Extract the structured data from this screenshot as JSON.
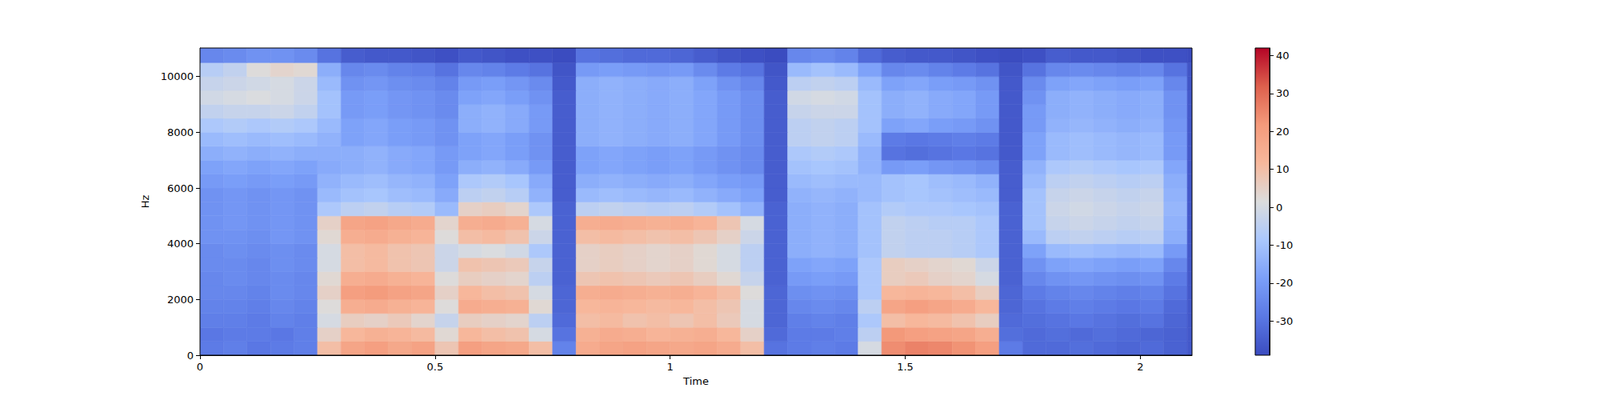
{
  "chart_data": {
    "type": "heatmap",
    "x_label": "Time",
    "y_label": "Hz",
    "xlim": [
      0,
      2.11
    ],
    "xticks": [
      0,
      0.5,
      1,
      1.5,
      2
    ],
    "ylim": [
      0,
      11025
    ],
    "yticks": [
      0,
      2000,
      4000,
      6000,
      8000,
      10000
    ],
    "x_edges": [
      0,
      0.05,
      0.1,
      0.15,
      0.2,
      0.25,
      0.3,
      0.35,
      0.4,
      0.45,
      0.5,
      0.55,
      0.6,
      0.65,
      0.7,
      0.75,
      0.8,
      0.85,
      0.9,
      0.95,
      1,
      1.05,
      1.1,
      1.15,
      1.2,
      1.25,
      1.3,
      1.35,
      1.4,
      1.45,
      1.5,
      1.55,
      1.6,
      1.65,
      1.7,
      1.75,
      1.8,
      1.85,
      1.9,
      1.95,
      2,
      2.05,
      2.1,
      2.11
    ],
    "y_edges": [
      0,
      500,
      1000,
      1500,
      2000,
      2500,
      3000,
      3500,
      4000,
      4500,
      5000,
      5500,
      6000,
      6500,
      7000,
      7500,
      8000,
      8500,
      9000,
      9500,
      10000,
      10500,
      11025
    ],
    "cells": [
      [
        -28,
        -27,
        -29,
        -28,
        -27,
        10,
        18,
        20,
        17,
        19,
        8,
        20,
        18,
        17,
        10,
        -26,
        16,
        18,
        19,
        18,
        17,
        18,
        16,
        10,
        -30,
        -28,
        -27,
        -28,
        0,
        24,
        26,
        25,
        23,
        20,
        -28,
        -32,
        -32,
        -31,
        -32,
        -33,
        -32,
        -34,
        -36
      ],
      [
        -29,
        -28,
        -28,
        -29,
        -27,
        5,
        12,
        14,
        13,
        11,
        3,
        12,
        10,
        9,
        0,
        -30,
        14,
        16,
        15,
        13,
        14,
        15,
        12,
        5,
        -32,
        -28,
        -28,
        -27,
        -5,
        22,
        20,
        19,
        18,
        15,
        -31,
        -32,
        -31,
        -32,
        -31,
        -32,
        -33,
        -34,
        -36
      ],
      [
        -27,
        -27,
        -28,
        -26,
        -27,
        0,
        6,
        5,
        7,
        4,
        -3,
        6,
        5,
        4,
        -5,
        -32,
        10,
        11,
        9,
        10,
        8,
        10,
        7,
        0,
        -33,
        -27,
        -26,
        -27,
        -8,
        10,
        12,
        11,
        9,
        6,
        -32,
        -31,
        -30,
        -29,
        -30,
        -31,
        -30,
        -33,
        -36
      ],
      [
        -26,
        -26,
        -27,
        -25,
        -26,
        2,
        15,
        16,
        14,
        13,
        2,
        16,
        15,
        14,
        3,
        -33,
        12,
        13,
        12,
        11,
        12,
        10,
        8,
        0,
        -33,
        -25,
        -24,
        -25,
        -5,
        18,
        20,
        18,
        16,
        12,
        -33,
        -30,
        -28,
        -27,
        -28,
        -29,
        -28,
        -32,
        -36
      ],
      [
        -25,
        -25,
        -26,
        -24,
        -25,
        5,
        20,
        21,
        19,
        18,
        5,
        12,
        10,
        9,
        0,
        -33,
        15,
        16,
        15,
        14,
        15,
        13,
        10,
        2,
        -33,
        -23,
        -22,
        -23,
        -8,
        12,
        13,
        12,
        10,
        6,
        -33,
        -28,
        -26,
        -25,
        -26,
        -27,
        -26,
        -30,
        -36
      ],
      [
        -25,
        -24,
        -25,
        -24,
        -25,
        3,
        15,
        16,
        14,
        13,
        2,
        6,
        5,
        4,
        -5,
        -34,
        8,
        9,
        8,
        7,
        8,
        6,
        3,
        -3,
        -34,
        -20,
        -19,
        -20,
        -8,
        6,
        7,
        5,
        4,
        0,
        -34,
        -25,
        -22,
        -21,
        -22,
        -23,
        -22,
        -28,
        -36
      ],
      [
        -24,
        -24,
        -25,
        -23,
        -24,
        0,
        10,
        11,
        9,
        8,
        -2,
        9,
        8,
        7,
        -3,
        -34,
        5,
        6,
        5,
        4,
        5,
        3,
        0,
        -5,
        -34,
        -18,
        -17,
        -18,
        -8,
        6,
        5,
        4,
        3,
        -2,
        -34,
        -22,
        -18,
        -17,
        -18,
        -19,
        -18,
        -25,
        -36
      ],
      [
        -24,
        -23,
        -24,
        -23,
        -24,
        0,
        10,
        11,
        9,
        8,
        -2,
        0,
        1,
        -1,
        -8,
        -34,
        5,
        6,
        5,
        4,
        5,
        3,
        0,
        -5,
        -34,
        -15,
        -14,
        -15,
        -10,
        -4,
        -5,
        -5,
        -6,
        -8,
        -34,
        -18,
        -12,
        -11,
        -12,
        -13,
        -12,
        -20,
        -36
      ],
      [
        -22,
        -22,
        -23,
        -21,
        -22,
        3,
        15,
        16,
        14,
        13,
        2,
        10,
        11,
        9,
        -2,
        -34,
        10,
        11,
        10,
        9,
        10,
        8,
        5,
        -2,
        -34,
        -15,
        -14,
        -15,
        -10,
        -4,
        -5,
        -5,
        -6,
        -8,
        -34,
        -12,
        -5,
        -4,
        -5,
        -6,
        -5,
        -15,
        -36
      ],
      [
        -22,
        -21,
        -22,
        -21,
        -22,
        5,
        18,
        19,
        17,
        16,
        4,
        15,
        16,
        14,
        0,
        -34,
        15,
        16,
        15,
        14,
        15,
        13,
        8,
        0,
        -34,
        -15,
        -14,
        -15,
        -10,
        -4,
        -5,
        -6,
        -6,
        -8,
        -34,
        -10,
        -3,
        -2,
        -3,
        -4,
        -3,
        -14,
        -36
      ],
      [
        -22,
        -21,
        -22,
        -21,
        -22,
        -8,
        -5,
        -4,
        -6,
        -7,
        -12,
        5,
        6,
        4,
        -8,
        -34,
        -5,
        -4,
        -5,
        -6,
        -5,
        -7,
        -10,
        -14,
        -34,
        -15,
        -14,
        -15,
        -10,
        -7,
        -8,
        -8,
        -9,
        -10,
        -34,
        -10,
        -2,
        -1,
        -2,
        -3,
        -2,
        -13,
        -36
      ],
      [
        -22,
        -21,
        -22,
        -21,
        -22,
        -12,
        -10,
        -9,
        -11,
        -12,
        -16,
        -5,
        -4,
        -6,
        -14,
        -35,
        -12,
        -11,
        -12,
        -13,
        -12,
        -14,
        -16,
        -18,
        -35,
        -14,
        -13,
        -14,
        -12,
        -10,
        -9,
        -10,
        -11,
        -12,
        -35,
        -10,
        -3,
        -2,
        -3,
        -4,
        -3,
        -14,
        -36
      ],
      [
        -20,
        -19,
        -20,
        -19,
        -20,
        -14,
        -12,
        -11,
        -13,
        -14,
        -18,
        -8,
        -7,
        -9,
        -16,
        -35,
        -15,
        -14,
        -15,
        -16,
        -15,
        -17,
        -19,
        -20,
        -35,
        -12,
        -11,
        -12,
        -12,
        -10,
        -9,
        -11,
        -12,
        -14,
        -35,
        -12,
        -5,
        -4,
        -5,
        -6,
        -5,
        -15,
        -36
      ],
      [
        -18,
        -17,
        -18,
        -17,
        -18,
        -16,
        -15,
        -14,
        -16,
        -17,
        -20,
        -15,
        -14,
        -16,
        -20,
        -35,
        -18,
        -17,
        -18,
        -19,
        -18,
        -20,
        -22,
        -24,
        -35,
        -10,
        -9,
        -10,
        -14,
        -20,
        -19,
        -21,
        -22,
        -24,
        -35,
        -14,
        -8,
        -7,
        -8,
        -9,
        -8,
        -17,
        -36
      ],
      [
        -15,
        -14,
        -15,
        -14,
        -15,
        -15,
        -15,
        -14,
        -16,
        -17,
        -20,
        -18,
        -17,
        -19,
        -22,
        -35,
        -18,
        -17,
        -18,
        -19,
        -18,
        -20,
        -22,
        -24,
        -35,
        -8,
        -7,
        -8,
        -14,
        -30,
        -31,
        -30,
        -29,
        -30,
        -36,
        -18,
        -12,
        -11,
        -12,
        -13,
        -12,
        -20,
        -36
      ],
      [
        -12,
        -11,
        -12,
        -11,
        -12,
        -14,
        -18,
        -17,
        -19,
        -20,
        -22,
        -18,
        -17,
        -19,
        -22,
        -35,
        -15,
        -14,
        -15,
        -16,
        -15,
        -17,
        -20,
        -23,
        -35,
        -5,
        -4,
        -5,
        -12,
        -28,
        -29,
        -28,
        -27,
        -28,
        -36,
        -18,
        -12,
        -11,
        -12,
        -13,
        -12,
        -20,
        -36
      ],
      [
        -8,
        -7,
        -8,
        -7,
        -8,
        -12,
        -18,
        -17,
        -19,
        -20,
        -22,
        -15,
        -14,
        -16,
        -20,
        -35,
        -15,
        -14,
        -15,
        -16,
        -15,
        -17,
        -20,
        -23,
        -35,
        -5,
        -4,
        -5,
        -10,
        -18,
        -17,
        -19,
        -20,
        -22,
        -36,
        -20,
        -14,
        -13,
        -14,
        -15,
        -14,
        -21,
        -36
      ],
      [
        -4,
        -3,
        -3,
        -2,
        -4,
        -10,
        -20,
        -19,
        -21,
        -22,
        -24,
        -15,
        -14,
        -16,
        -20,
        -35,
        -15,
        -14,
        -15,
        -16,
        -15,
        -17,
        -20,
        -23,
        -35,
        -3,
        -2,
        -2,
        -10,
        -15,
        -14,
        -16,
        -17,
        -20,
        -36,
        -20,
        -15,
        -14,
        -15,
        -16,
        -15,
        -22,
        -36
      ],
      [
        -1,
        0,
        1,
        0,
        -2,
        -10,
        -20,
        -19,
        -21,
        -22,
        -24,
        -18,
        -17,
        -19,
        -22,
        -35,
        -15,
        -14,
        -15,
        -16,
        -15,
        -17,
        -20,
        -23,
        -35,
        -1,
        0,
        -1,
        -10,
        -15,
        -14,
        -16,
        -17,
        -20,
        -36,
        -22,
        -15,
        -14,
        -15,
        -16,
        -15,
        -22,
        -36
      ],
      [
        -3,
        -2,
        -1,
        0,
        -2,
        -12,
        -22,
        -21,
        -23,
        -24,
        -26,
        -20,
        -19,
        -21,
        -24,
        -36,
        -15,
        -14,
        -15,
        -16,
        -15,
        -18,
        -22,
        -25,
        -36,
        -5,
        -4,
        -5,
        -12,
        -18,
        -17,
        -19,
        -20,
        -22,
        -36,
        -24,
        -18,
        -17,
        -18,
        -19,
        -18,
        -25,
        -37
      ],
      [
        -6,
        -4,
        2,
        4,
        3,
        -15,
        -25,
        -24,
        -26,
        -27,
        -30,
        -25,
        -26,
        -28,
        -30,
        -37,
        -20,
        -19,
        -20,
        -21,
        -20,
        -24,
        -28,
        -30,
        -37,
        -12,
        -10,
        -12,
        -18,
        -25,
        -24,
        -26,
        -28,
        -30,
        -37,
        -30,
        -25,
        -24,
        -25,
        -26,
        -25,
        -30,
        -37
      ],
      [
        -25,
        -24,
        -22,
        -22,
        -24,
        -30,
        -35,
        -36,
        -36,
        -37,
        -38,
        -36,
        -37,
        -38,
        -38,
        -39,
        -30,
        -31,
        -32,
        -32,
        -33,
        -35,
        -37,
        -38,
        -39,
        -25,
        -24,
        -26,
        -32,
        -35,
        -36,
        -36,
        -37,
        -38,
        -39,
        -38,
        -35,
        -36,
        -36,
        -37,
        -38,
        -38,
        -39
      ]
    ],
    "colorbar": {
      "range": [
        -39,
        42
      ],
      "ticks": [
        -30,
        -20,
        -10,
        0,
        10,
        20,
        30,
        40
      ]
    }
  }
}
